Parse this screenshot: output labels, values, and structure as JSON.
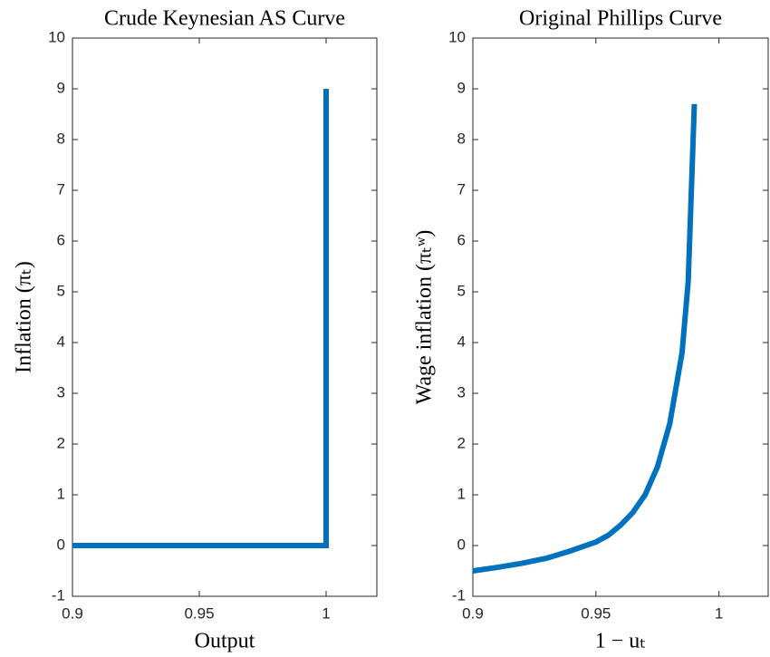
{
  "chart_data": [
    {
      "type": "line",
      "title": "Crude Keynesian AS Curve",
      "xlabel": "Output",
      "ylabel": "Inflation (πₜ)",
      "x": [
        0.9,
        1,
        1
      ],
      "series": [
        {
          "color": "#0072bd",
          "values": [
            0,
            0,
            9
          ]
        }
      ],
      "xlim": [
        0.9,
        1.02
      ],
      "xticks": [
        {
          "value": 0.9,
          "label": "0.9"
        },
        0.95,
        1
      ],
      "ylim": [
        -1,
        10
      ],
      "yticks": [
        -1,
        0,
        1,
        2,
        3,
        4,
        5,
        6,
        7,
        8,
        9,
        10
      ],
      "grid": false
    },
    {
      "type": "line",
      "title": "Original Phillips Curve",
      "xlabel": "1 − uₜ",
      "ylabel": "Wage inflation (πₜʷ)",
      "x": [
        0.9,
        0.91,
        0.92,
        0.93,
        0.94,
        0.95,
        0.955,
        0.96,
        0.965,
        0.97,
        0.975,
        0.98,
        0.985,
        0.9875,
        0.99
      ],
      "series": [
        {
          "color": "#0072bd",
          "values": [
            -0.5,
            -0.43,
            -0.35,
            -0.25,
            -0.1,
            0.07,
            0.2,
            0.4,
            0.65,
            1.0,
            1.55,
            2.4,
            3.8,
            5.2,
            8.7
          ]
        }
      ],
      "xlim": [
        0.9,
        1.02
      ],
      "xticks": [
        {
          "value": 0.9,
          "label": "0.9"
        },
        0.95,
        1
      ],
      "ylim": [
        -1,
        10
      ],
      "yticks": [
        -1,
        0,
        1,
        2,
        3,
        4,
        5,
        6,
        7,
        8,
        9,
        10
      ],
      "grid": false
    }
  ]
}
